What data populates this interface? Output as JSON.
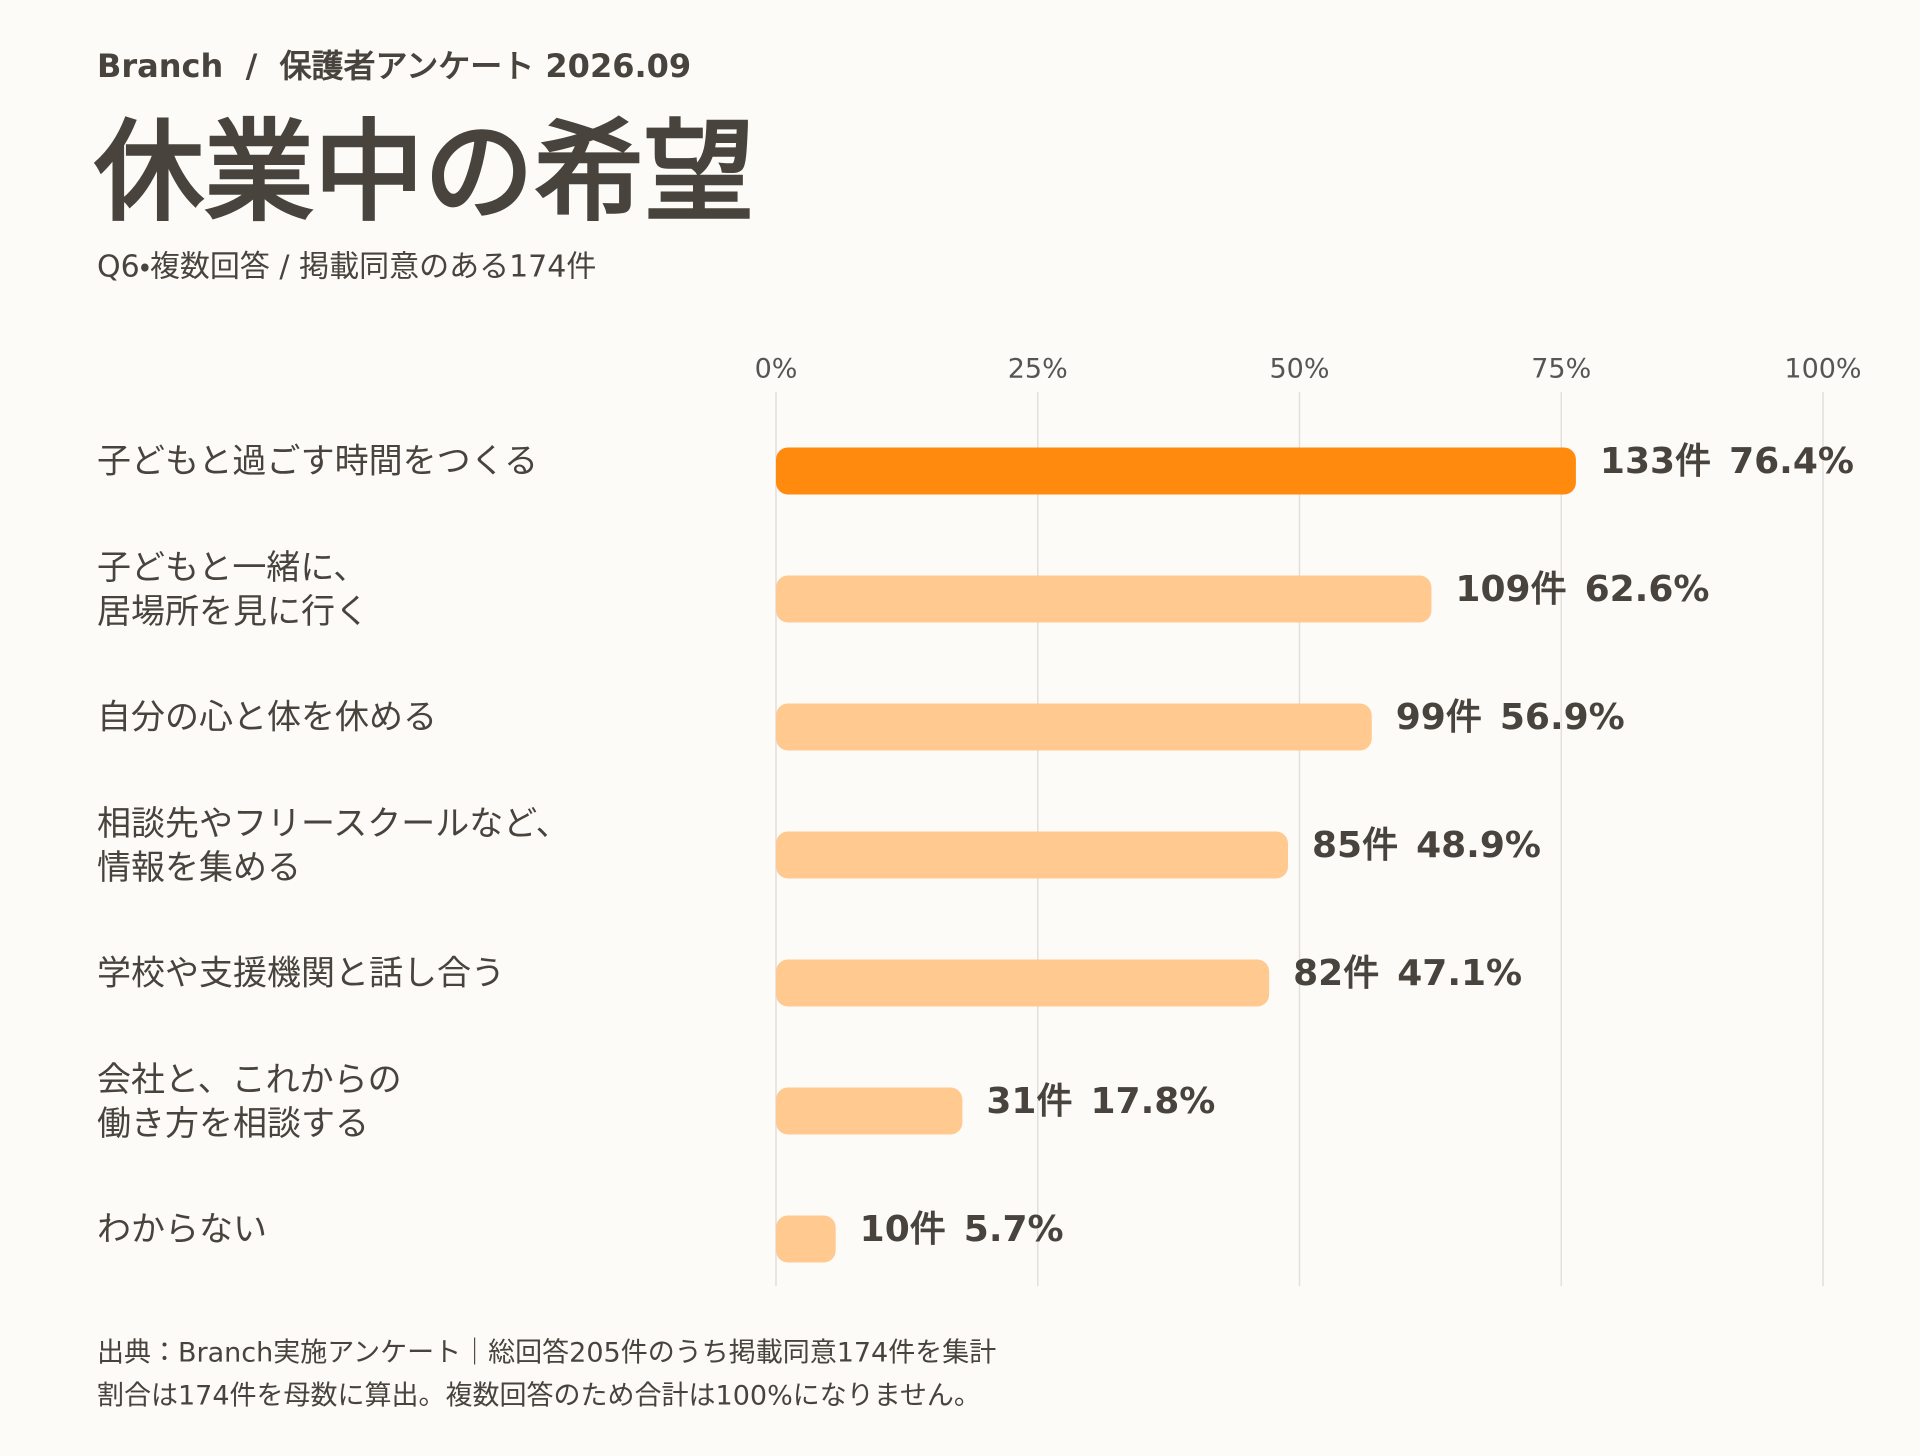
{
  "chart_data": {
    "type": "bar",
    "orientation": "horizontal",
    "header": "Branch  /  保護者アンケート 2026.09",
    "title": "休業中の希望",
    "subtitle": "Q6・複数回答 / 掲載同意のある174件",
    "categories": [
      "子どもと過ごす時間をつくる",
      "子どもと一緒に、\n居場所を見に行く",
      "自分の心と体を休める",
      "相談先やフリースクールなど、\n情報を集める",
      "学校や支援機関と話し合う",
      "会社と、これからの\n働き方を相談する",
      "わからない"
    ],
    "values": [
      76.4,
      62.6,
      56.9,
      48.9,
      47.1,
      17.8,
      5.7
    ],
    "value_labels": [
      "76.4%",
      "62.6%",
      "56.9%",
      "48.9%",
      "47.1%",
      "17.8%",
      "5.7%"
    ],
    "counts": [
      "133件",
      "109件",
      "99件",
      "85件",
      "82件",
      "31件",
      "10件"
    ],
    "colors": [
      "#ff8a0e",
      "#ffc98f",
      "#ffc98f",
      "#ffc98f",
      "#ffc98f",
      "#ffc98f",
      "#ffc98f"
    ],
    "xlim": [
      0,
      100
    ],
    "xticks": [
      {
        "value": 0,
        "label": "0%"
      },
      {
        "value": 25,
        "label": "25%"
      },
      {
        "value": 50,
        "label": "50%"
      },
      {
        "value": 75,
        "label": "75%"
      },
      {
        "value": 100,
        "label": "100%"
      }
    ],
    "grid": true,
    "notes": [
      "出典：Branch実施アンケート｜総回答205件のうち掲載同意174件を集計",
      "割合は174件を母数に算出。複数回答のため合計は100%になりません。"
    ]
  }
}
